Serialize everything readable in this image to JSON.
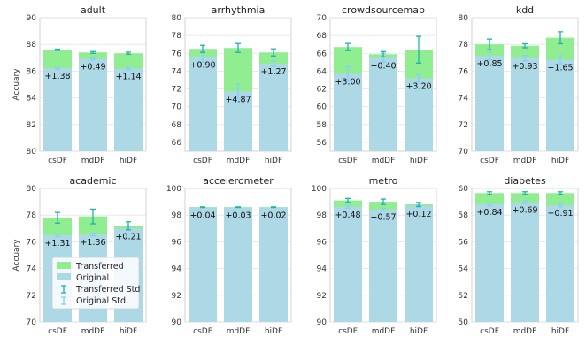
{
  "colors": {
    "original": "#add8e6",
    "transferred": "#90ee90",
    "transferred_std": "#20b2aa",
    "original_std": "#87cefa",
    "grid": "#e3e3e3",
    "panel_border": "#c8c8c8"
  },
  "legend": {
    "placement": "lower-left of academic panel",
    "transferred": "Transferred",
    "original": "Original",
    "transferred_std": "Transferred Std",
    "original_std": "Original Std"
  },
  "chart_data": [
    {
      "type": "bar",
      "title": "adult",
      "ylabel": "Accuary",
      "ylim": [
        80,
        90
      ],
      "yticks": [
        "80",
        "82",
        "84",
        "86",
        "88",
        "90"
      ],
      "grid": true,
      "categories": [
        "csDF",
        "mdDF",
        "hiDF"
      ],
      "series": [
        {
          "name": "Original",
          "values": [
            86.22,
            86.91,
            86.2
          ],
          "std": [
            0.08,
            0.06,
            0.08
          ]
        },
        {
          "name": "Transferred",
          "values": [
            87.6,
            87.4,
            87.34
          ],
          "std": [
            0.05,
            0.07,
            0.08
          ]
        }
      ],
      "labels": [
        "+1.38",
        "+0.49",
        "+1.14"
      ]
    },
    {
      "type": "bar",
      "title": "arrhythmia",
      "ylabel": "",
      "ylim": [
        65,
        80
      ],
      "yticks": [
        "66",
        "68",
        "70",
        "72",
        "74",
        "76",
        "78",
        "80"
      ],
      "grid": true,
      "categories": [
        "csDF",
        "mdDF",
        "hiDF"
      ],
      "series": [
        {
          "name": "Original",
          "values": [
            75.6,
            71.73,
            74.83
          ],
          "std": [
            0.6,
            0.8,
            0.3
          ]
        },
        {
          "name": "Transferred",
          "values": [
            76.5,
            76.6,
            76.1
          ],
          "std": [
            0.4,
            0.5,
            0.4
          ]
        }
      ],
      "labels": [
        "+0.90",
        "+4.87",
        "+1.27"
      ]
    },
    {
      "type": "bar",
      "title": "crowdsourcemap",
      "ylabel": "",
      "ylim": [
        55,
        70
      ],
      "yticks": [
        "56",
        "58",
        "60",
        "62",
        "64",
        "66",
        "68",
        "70"
      ],
      "grid": true,
      "categories": [
        "csDF",
        "mdDF",
        "hiDF"
      ],
      "series": [
        {
          "name": "Original",
          "values": [
            63.7,
            65.5,
            63.2
          ],
          "std": [
            0.8,
            0.5,
            0.4
          ]
        },
        {
          "name": "Transferred",
          "values": [
            66.7,
            65.9,
            66.4
          ],
          "std": [
            0.4,
            0.3,
            1.5
          ]
        }
      ],
      "labels": [
        "+3.00",
        "+0.40",
        "+3.20"
      ]
    },
    {
      "type": "bar",
      "title": "kdd",
      "ylabel": "",
      "ylim": [
        70,
        80
      ],
      "yticks": [
        "70",
        "72",
        "74",
        "76",
        "78",
        "80"
      ],
      "grid": true,
      "categories": [
        "csDF",
        "mdDF",
        "hiDF"
      ],
      "series": [
        {
          "name": "Original",
          "values": [
            77.15,
            76.97,
            76.85
          ],
          "std": [
            0.3,
            0.2,
            0.3
          ]
        },
        {
          "name": "Transferred",
          "values": [
            78.0,
            77.9,
            78.5
          ],
          "std": [
            0.4,
            0.15,
            0.45
          ]
        }
      ],
      "labels": [
        "+0.85",
        "+0.93",
        "+1.65"
      ]
    },
    {
      "type": "bar",
      "title": "academic",
      "ylabel": "Accuary",
      "ylim": [
        70,
        80
      ],
      "yticks": [
        "70",
        "72",
        "74",
        "76",
        "78",
        "80"
      ],
      "grid": true,
      "categories": [
        "csDF",
        "mdDF",
        "hiDF"
      ],
      "series": [
        {
          "name": "Original",
          "values": [
            76.49,
            76.54,
            76.99
          ],
          "std": [
            0.1,
            0.1,
            0.1
          ]
        },
        {
          "name": "Transferred",
          "values": [
            77.8,
            77.9,
            77.2
          ],
          "std": [
            0.4,
            0.55,
            0.3
          ]
        }
      ],
      "labels": [
        "+1.31",
        "+1.36",
        "+0.21"
      ]
    },
    {
      "type": "bar",
      "title": "accelerometer",
      "ylabel": "",
      "ylim": [
        90,
        100
      ],
      "yticks": [
        "90",
        "92",
        "94",
        "96",
        "98",
        "100"
      ],
      "grid": true,
      "categories": [
        "csDF",
        "mdDF",
        "hiDF"
      ],
      "series": [
        {
          "name": "Original",
          "values": [
            98.56,
            98.57,
            98.58
          ],
          "std": [
            0.02,
            0.02,
            0.02
          ]
        },
        {
          "name": "Transferred",
          "values": [
            98.6,
            98.6,
            98.6
          ],
          "std": [
            0.02,
            0.02,
            0.02
          ]
        }
      ],
      "labels": [
        "+0.04",
        "+0.03",
        "+0.02"
      ]
    },
    {
      "type": "bar",
      "title": "metro",
      "ylabel": "",
      "ylim": [
        90,
        100
      ],
      "yticks": [
        "90",
        "92",
        "94",
        "96",
        "98",
        "100"
      ],
      "grid": true,
      "categories": [
        "csDF",
        "mdDF",
        "hiDF"
      ],
      "series": [
        {
          "name": "Original",
          "values": [
            98.62,
            98.43,
            98.68
          ],
          "std": [
            0.1,
            0.1,
            0.1
          ]
        },
        {
          "name": "Transferred",
          "values": [
            99.1,
            99.0,
            98.8
          ],
          "std": [
            0.15,
            0.2,
            0.15
          ]
        }
      ],
      "labels": [
        "+0.48",
        "+0.57",
        "+0.12"
      ]
    },
    {
      "type": "bar",
      "title": "diabetes",
      "ylabel": "",
      "ylim": [
        50,
        60
      ],
      "yticks": [
        "50",
        "52",
        "54",
        "56",
        "58",
        "60"
      ],
      "grid": true,
      "categories": [
        "csDF",
        "mdDF",
        "hiDF"
      ],
      "series": [
        {
          "name": "Original",
          "values": [
            58.81,
            58.96,
            58.74
          ],
          "std": [
            0.1,
            0.1,
            0.1
          ]
        },
        {
          "name": "Transferred",
          "values": [
            59.65,
            59.65,
            59.65
          ],
          "std": [
            0.1,
            0.1,
            0.1
          ]
        }
      ],
      "labels": [
        "+0.84",
        "+0.69",
        "+0.91"
      ]
    }
  ]
}
